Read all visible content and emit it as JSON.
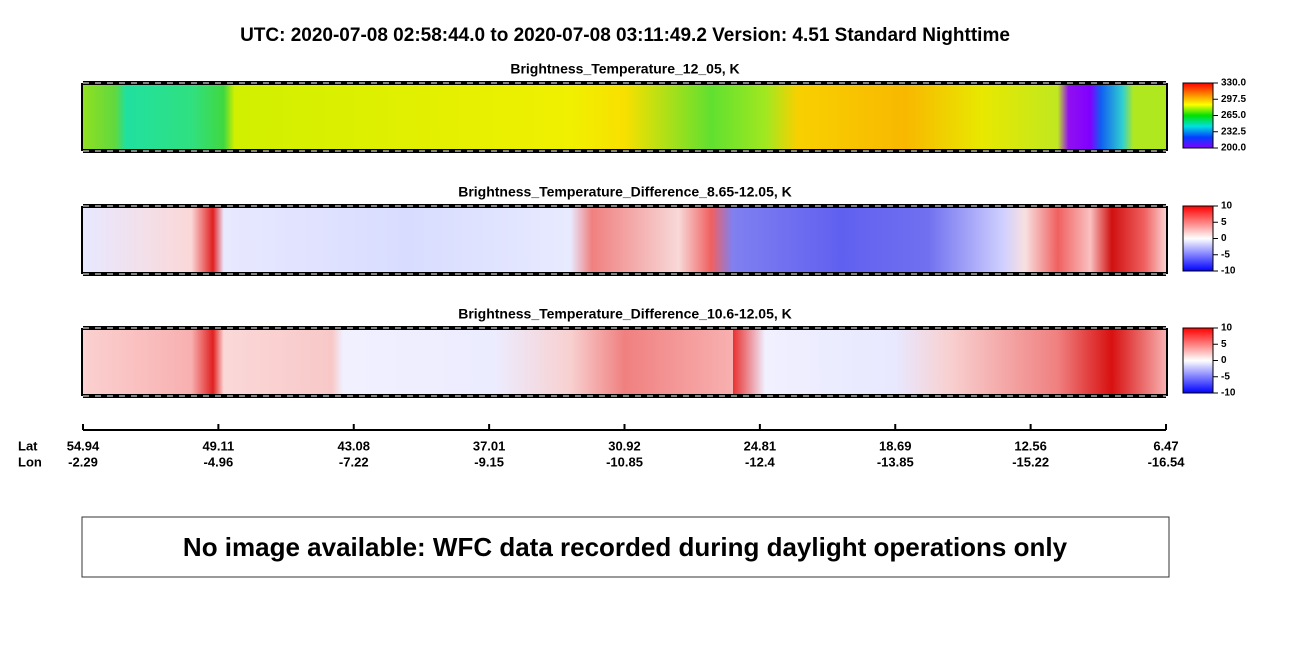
{
  "header": {
    "title": "UTC:  2020-07-08   02:58:44.0  to  2020-07-08   03:11:49.2    Version: 4.51  Standard Nighttime"
  },
  "panels": [
    {
      "title": "Brightness_Temperature_12_05, K",
      "colorbar": {
        "lim": [
          200,
          330
        ],
        "ticks": [
          {
            "value": 330,
            "label": "330.0"
          },
          {
            "value": 297.5,
            "label": "297.5"
          },
          {
            "value": 265,
            "label": "265.0"
          },
          {
            "value": 232.5,
            "label": "232.5"
          },
          {
            "value": 200,
            "label": "200.0"
          }
        ],
        "colors": [
          "#8000ff",
          "#0040ff",
          "#00e0e0",
          "#00e000",
          "#ffff00",
          "#ff8000",
          "#ff0000"
        ]
      }
    },
    {
      "title": "Brightness_Temperature_Difference_8.65-12.05, K",
      "colorbar": {
        "lim": [
          -10,
          10
        ],
        "ticks": [
          10,
          5,
          0,
          -5,
          -10
        ],
        "colors": [
          "#0000ff",
          "#ffffff",
          "#ff0000"
        ]
      }
    },
    {
      "title": "Brightness_Temperature_Difference_10.6-12.05, K",
      "colorbar": {
        "lim": [
          -10,
          10
        ],
        "ticks": [
          10,
          5,
          0,
          -5,
          -10
        ],
        "colors": [
          "#0000ff",
          "#ffffff",
          "#ff0000"
        ]
      }
    }
  ],
  "track": {
    "lat_label": "Lat",
    "lon_label": "Lon",
    "ticks": [
      {
        "lat": 54.94,
        "lon": -2.29
      },
      {
        "lat": 49.11,
        "lon": -4.96
      },
      {
        "lat": 43.08,
        "lon": -7.22
      },
      {
        "lat": 37.01,
        "lon": -9.15
      },
      {
        "lat": 30.92,
        "lon": -10.85
      },
      {
        "lat": 24.81,
        "lon": -12.4
      },
      {
        "lat": 18.69,
        "lon": -13.85
      },
      {
        "lat": 12.56,
        "lon": -15.22
      },
      {
        "lat": 6.47,
        "lon": -16.54
      }
    ]
  },
  "notice": "No image available: WFC data recorded during daylight operations only"
}
